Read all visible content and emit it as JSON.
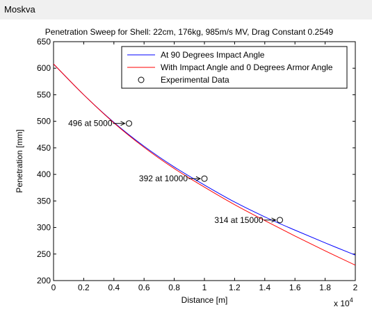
{
  "window": {
    "title": "Moskva"
  },
  "chart_data": {
    "type": "line",
    "title": "Penetration Sweep for Shell: 22cm, 176kg, 985m/s MV, Drag Constant 0.2549",
    "xlabel": "Distance [m]",
    "ylabel": "Penetration [mm]",
    "x_multiplier_label": "x 10",
    "x_multiplier_exponent": "4",
    "xlim": [
      0,
      20000
    ],
    "ylim": [
      200,
      650
    ],
    "x_ticks": [
      0,
      2000,
      4000,
      6000,
      8000,
      10000,
      12000,
      14000,
      16000,
      18000,
      20000
    ],
    "x_tick_labels": [
      "0",
      "0.2",
      "0.4",
      "0.6",
      "0.8",
      "1",
      "1.2",
      "1.4",
      "1.6",
      "1.8",
      "2"
    ],
    "y_ticks": [
      200,
      250,
      300,
      350,
      400,
      450,
      500,
      550,
      600,
      650
    ],
    "y_tick_labels": [
      "200",
      "250",
      "300",
      "350",
      "400",
      "450",
      "500",
      "550",
      "600",
      "650"
    ],
    "grid": false,
    "legend_position": "top-right",
    "series": [
      {
        "name": "At 90 Degrees Impact Angle",
        "color": "#0000ff",
        "style": "line",
        "x": [
          0,
          2000,
          4000,
          6000,
          8000,
          10000,
          12000,
          14000,
          16000,
          18000,
          20000
        ],
        "y": [
          608,
          550,
          498,
          453,
          414,
          380,
          348,
          320,
          295,
          271,
          248
        ]
      },
      {
        "name": "With Impact Angle and 0 Degrees Armor Angle",
        "color": "#ff0000",
        "style": "line",
        "x": [
          0,
          2000,
          4000,
          6000,
          8000,
          10000,
          12000,
          14000,
          16000,
          18000,
          20000
        ],
        "y": [
          608,
          550,
          497,
          451,
          411,
          376,
          343,
          313,
          284,
          256,
          229
        ]
      },
      {
        "name": "Experimental Data",
        "color": "#000000",
        "style": "marker",
        "x": [
          5000,
          10000,
          15000
        ],
        "y": [
          496,
          392,
          314
        ]
      }
    ],
    "annotations": [
      {
        "text": "496 at 5000",
        "x": 5000,
        "y": 496
      },
      {
        "text": "392 at 10000",
        "x": 10000,
        "y": 392
      },
      {
        "text": "314 at 15000",
        "x": 15000,
        "y": 314
      }
    ]
  }
}
